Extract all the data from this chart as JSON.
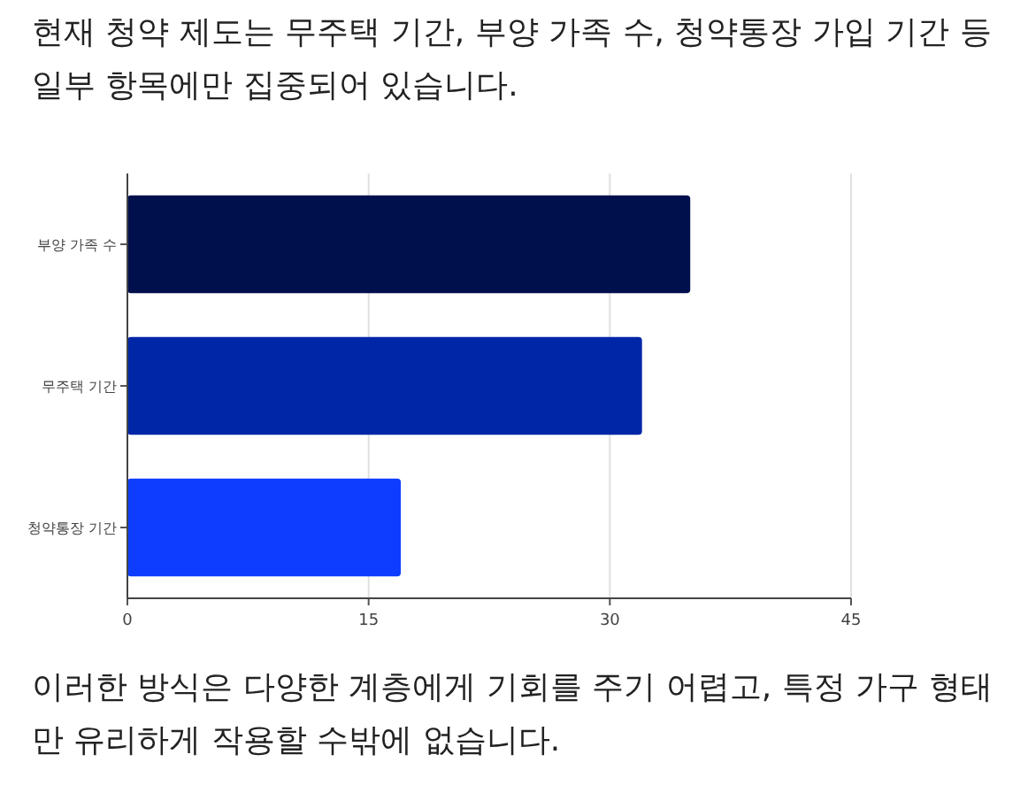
{
  "chart_data": {
    "type": "bar",
    "orientation": "horizontal",
    "title": "현재 청약 제도는 무주택 기간, 부양 가족 수, 청약통장 가입 기간 등 일부 항목에만 집중되어 있습니다.",
    "categories": [
      "부양 가족 수",
      "무주택 기간",
      "청약통장 기간"
    ],
    "values": [
      35,
      32,
      17
    ],
    "colors": [
      "#00104d",
      "#0026a8",
      "#0f3dff"
    ],
    "xlim": [
      0,
      45
    ],
    "xticks": [
      0,
      15,
      30,
      45
    ],
    "grid": "x",
    "annotations": [
      "이러한 방식은 다양한 계층에게 기회를 주기 어렵고, 특정 가구 형태만 유리하게 작용할 수밖에 없습니다."
    ]
  }
}
